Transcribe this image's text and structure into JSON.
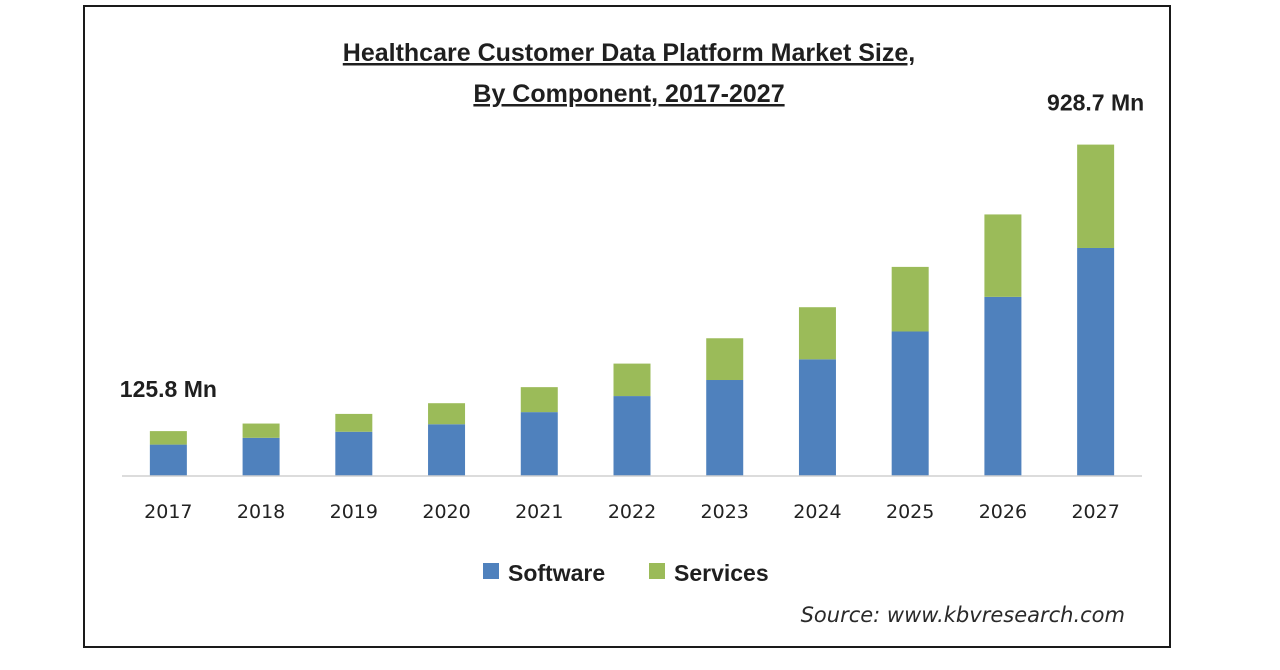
{
  "chart_data": {
    "type": "bar",
    "stacked": true,
    "title_line1": "Healthcare Customer Data Platform Market Size,",
    "title_line2": "By Component, 2017-2027",
    "categories": [
      "2017",
      "2018",
      "2019",
      "2020",
      "2021",
      "2022",
      "2023",
      "2024",
      "2025",
      "2026",
      "2027"
    ],
    "series": [
      {
        "name": "Software",
        "color": "#4f81bd",
        "values": [
          88,
          107,
          124,
          145,
          179,
          224,
          269,
          327,
          405,
          502,
          639
        ]
      },
      {
        "name": "Services",
        "color": "#9bbb59",
        "values": [
          37.8,
          40,
          50,
          59,
          70,
          91,
          117,
          146,
          181,
          231,
          289.7
        ]
      }
    ],
    "annotations": [
      {
        "category": "2017",
        "text": "125.8 Mn"
      },
      {
        "category": "2027",
        "text": "928.7 Mn"
      }
    ],
    "ylim": [
      0,
      950
    ],
    "xlabel": "",
    "ylabel": "",
    "legend_position": "bottom-center",
    "source": "Source: www.kbvresearch.com"
  }
}
